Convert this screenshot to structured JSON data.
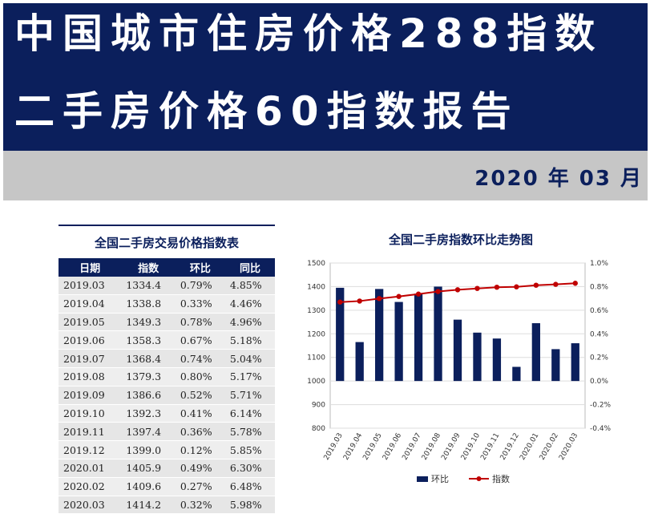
{
  "header": {
    "title_line1": "中国城市住房价格288指数",
    "title_line2": "二手房价格60指数报告",
    "date": "2020 年 03 月"
  },
  "table": {
    "title": "全国二手房交易价格指数表",
    "columns": [
      "日期",
      "指数",
      "环比",
      "同比"
    ],
    "rows": [
      [
        "2019.03",
        "1334.4",
        "0.79%",
        "4.85%"
      ],
      [
        "2019.04",
        "1338.8",
        "0.33%",
        "4.46%"
      ],
      [
        "2019.05",
        "1349.3",
        "0.78%",
        "4.96%"
      ],
      [
        "2019.06",
        "1358.3",
        "0.67%",
        "5.18%"
      ],
      [
        "2019.07",
        "1368.4",
        "0.74%",
        "5.04%"
      ],
      [
        "2019.08",
        "1379.3",
        "0.80%",
        "5.17%"
      ],
      [
        "2019.09",
        "1386.6",
        "0.52%",
        "5.71%"
      ],
      [
        "2019.10",
        "1392.3",
        "0.41%",
        "6.14%"
      ],
      [
        "2019.11",
        "1397.4",
        "0.36%",
        "5.78%"
      ],
      [
        "2019.12",
        "1399.0",
        "0.12%",
        "5.85%"
      ],
      [
        "2020.01",
        "1405.9",
        "0.49%",
        "6.30%"
      ],
      [
        "2020.02",
        "1409.6",
        "0.27%",
        "6.48%"
      ],
      [
        "2020.03",
        "1414.2",
        "0.32%",
        "5.98%"
      ]
    ]
  },
  "chart_data": {
    "type": "bar",
    "title": "全国二手房指数环比走势图",
    "categories": [
      "2019.03",
      "2019.04",
      "2019.05",
      "2019.06",
      "2019.07",
      "2019.08",
      "2019.09",
      "2019.10",
      "2019.11",
      "2019.12",
      "2020.01",
      "2020.02",
      "2020.03"
    ],
    "series": [
      {
        "name": "环比",
        "type": "bar",
        "axis": "right",
        "values": [
          0.79,
          0.33,
          0.78,
          0.67,
          0.74,
          0.8,
          0.52,
          0.41,
          0.36,
          0.12,
          0.49,
          0.27,
          0.32
        ],
        "color": "#0b1f5c"
      },
      {
        "name": "指数",
        "type": "line",
        "axis": "left",
        "values": [
          1334.4,
          1338.8,
          1349.3,
          1358.3,
          1368.4,
          1379.3,
          1386.6,
          1392.3,
          1397.4,
          1399.0,
          1405.9,
          1409.6,
          1414.2
        ],
        "color": "#c00000"
      }
    ],
    "ylim_left": [
      800,
      1500
    ],
    "yticks_left": [
      "800",
      "900",
      "1000",
      "1100",
      "1200",
      "1300",
      "1400",
      "1500"
    ],
    "ylim_right": [
      -0.4,
      0.8
    ],
    "yticks_right": [
      "-0.4%",
      "-0.2%",
      "0.0%",
      "0.2%",
      "0.4%",
      "0.6%",
      "0.8%",
      "1.0%"
    ],
    "legend_position": "bottom",
    "grid": true
  }
}
